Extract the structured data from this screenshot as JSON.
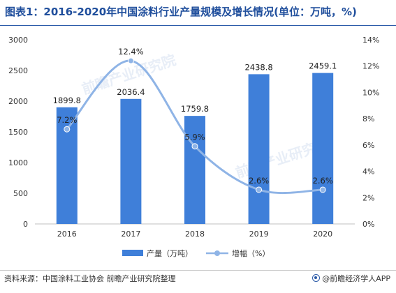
{
  "title": "图表1：2016-2020年中国涂料行业产量规模及增长情况(单位：万吨，%)",
  "source": "资料来源：中国涂料工业协会 前瞻产业研究院整理",
  "brand": "@前瞻经济学人APP",
  "watermark": "前瞻产业研究院",
  "chart_data": {
    "type": "bar",
    "categories": [
      "2016",
      "2017",
      "2018",
      "2019",
      "2020"
    ],
    "series": [
      {
        "name": "产量（万吨）",
        "type": "bar",
        "axis": "left",
        "color": "#3f7fd9",
        "values": [
          1899.8,
          2036.4,
          1759.8,
          2438.8,
          2459.1
        ],
        "labels": [
          "1899.8",
          "2036.4",
          "1759.8",
          "2438.8",
          "2459.1"
        ]
      },
      {
        "name": "增幅（%）",
        "type": "line",
        "axis": "right",
        "color": "#8fb4e6",
        "values": [
          7.2,
          12.4,
          5.9,
          2.6,
          2.6
        ],
        "labels": [
          "7.2%",
          "12.4%",
          "5.9%",
          "2.6%",
          "2.6%"
        ]
      }
    ],
    "y_left": {
      "min": 0,
      "max": 3000,
      "ticks": [
        "0",
        "500",
        "1000",
        "1500",
        "2000",
        "2500",
        "3000"
      ]
    },
    "y_right": {
      "min": 0,
      "max": 14,
      "ticks": [
        "0%",
        "2%",
        "4%",
        "6%",
        "8%",
        "10%",
        "12%",
        "14%"
      ]
    },
    "legend_position": "bottom",
    "grid": false
  }
}
